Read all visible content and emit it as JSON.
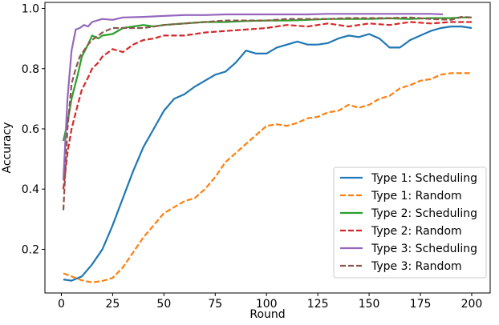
{
  "chart_data": {
    "type": "line",
    "xlabel": "Round",
    "ylabel": "Accuracy",
    "xlim": [
      -8,
      209
    ],
    "ylim": [
      0.055,
      1.02
    ],
    "xticks": [
      0,
      25,
      50,
      75,
      100,
      125,
      150,
      175,
      200
    ],
    "yticks": [
      0.2,
      0.4,
      0.6,
      0.8,
      1.0
    ],
    "ytick_labels": [
      "0.2",
      "0.4",
      "0.6",
      "0.8",
      "1.0"
    ],
    "grid": false,
    "legend_position": "lower-right",
    "series": [
      {
        "name": "Type 1: Scheduling",
        "color": "#1f77b4",
        "dashed": false,
        "x": [
          1,
          5,
          10,
          15,
          20,
          25,
          30,
          35,
          40,
          45,
          50,
          55,
          60,
          65,
          70,
          75,
          80,
          85,
          90,
          95,
          100,
          105,
          110,
          115,
          120,
          125,
          130,
          135,
          140,
          145,
          150,
          155,
          160,
          165,
          170,
          175,
          180,
          185,
          190,
          195,
          200
        ],
        "y": [
          0.1,
          0.096,
          0.11,
          0.15,
          0.2,
          0.28,
          0.37,
          0.46,
          0.54,
          0.6,
          0.66,
          0.7,
          0.715,
          0.74,
          0.76,
          0.78,
          0.79,
          0.82,
          0.86,
          0.85,
          0.85,
          0.87,
          0.88,
          0.89,
          0.88,
          0.88,
          0.885,
          0.9,
          0.91,
          0.905,
          0.915,
          0.9,
          0.87,
          0.87,
          0.895,
          0.91,
          0.925,
          0.935,
          0.94,
          0.94,
          0.935
        ]
      },
      {
        "name": "Type 1: Random",
        "color": "#ff7f0e",
        "dashed": true,
        "x": [
          1,
          5,
          10,
          15,
          20,
          25,
          30,
          35,
          40,
          45,
          50,
          55,
          60,
          65,
          70,
          75,
          80,
          85,
          90,
          95,
          100,
          105,
          110,
          115,
          120,
          125,
          130,
          135,
          140,
          145,
          150,
          155,
          160,
          165,
          170,
          175,
          180,
          185,
          190,
          195,
          200
        ],
        "y": [
          0.12,
          0.11,
          0.097,
          0.09,
          0.095,
          0.105,
          0.14,
          0.19,
          0.24,
          0.28,
          0.32,
          0.34,
          0.36,
          0.37,
          0.4,
          0.44,
          0.49,
          0.52,
          0.55,
          0.58,
          0.61,
          0.615,
          0.61,
          0.62,
          0.635,
          0.64,
          0.655,
          0.66,
          0.68,
          0.67,
          0.68,
          0.7,
          0.71,
          0.735,
          0.745,
          0.76,
          0.765,
          0.78,
          0.785,
          0.785,
          0.785
        ]
      },
      {
        "name": "Type 2: Scheduling",
        "color": "#2ca02c",
        "dashed": false,
        "x": [
          1,
          3,
          5,
          8,
          10,
          13,
          15,
          18,
          20,
          25,
          30,
          35,
          40,
          45,
          50,
          60,
          70,
          80,
          90,
          100,
          110,
          120,
          130,
          140,
          150,
          160,
          170,
          180,
          190,
          195,
          200
        ],
        "y": [
          0.56,
          0.62,
          0.7,
          0.78,
          0.84,
          0.88,
          0.91,
          0.9,
          0.91,
          0.915,
          0.935,
          0.94,
          0.945,
          0.94,
          0.945,
          0.95,
          0.955,
          0.955,
          0.958,
          0.96,
          0.96,
          0.962,
          0.965,
          0.965,
          0.965,
          0.967,
          0.965,
          0.968,
          0.968,
          0.97,
          0.97
        ]
      },
      {
        "name": "Type 2: Random",
        "color": "#d62728",
        "dashed": true,
        "x": [
          1,
          3,
          5,
          8,
          10,
          13,
          15,
          18,
          20,
          25,
          30,
          35,
          40,
          45,
          50,
          60,
          70,
          80,
          90,
          100,
          110,
          120,
          130,
          140,
          150,
          160,
          170,
          180,
          190,
          200
        ],
        "y": [
          0.4,
          0.52,
          0.6,
          0.68,
          0.73,
          0.77,
          0.8,
          0.82,
          0.84,
          0.865,
          0.855,
          0.88,
          0.895,
          0.9,
          0.91,
          0.91,
          0.92,
          0.925,
          0.93,
          0.935,
          0.945,
          0.94,
          0.95,
          0.94,
          0.95,
          0.945,
          0.955,
          0.95,
          0.955,
          0.955
        ]
      },
      {
        "name": "Type 3: Scheduling",
        "color": "#9467bd",
        "dashed": false,
        "x": [
          1,
          3,
          5,
          7,
          9,
          11,
          13,
          15,
          20,
          25,
          30,
          40,
          50,
          60,
          70,
          80,
          90,
          100,
          110,
          120,
          130,
          140,
          150,
          160,
          170,
          180,
          186
        ],
        "y": [
          0.43,
          0.7,
          0.86,
          0.93,
          0.935,
          0.945,
          0.94,
          0.955,
          0.965,
          0.962,
          0.97,
          0.972,
          0.975,
          0.978,
          0.978,
          0.98,
          0.98,
          0.98,
          0.98,
          0.98,
          0.982,
          0.982,
          0.982,
          0.982,
          0.982,
          0.982,
          0.98
        ]
      },
      {
        "name": "Type 3: Random",
        "color": "#8c564b",
        "dashed": true,
        "x": [
          1,
          3,
          5,
          7,
          9,
          11,
          13,
          15,
          20,
          25,
          30,
          40,
          50,
          60,
          70,
          80,
          90,
          100,
          110,
          120,
          130,
          140,
          150,
          160,
          170,
          180,
          190,
          195,
          200
        ],
        "y": [
          0.33,
          0.6,
          0.75,
          0.8,
          0.84,
          0.86,
          0.88,
          0.895,
          0.92,
          0.935,
          0.935,
          0.935,
          0.945,
          0.95,
          0.955,
          0.96,
          0.96,
          0.96,
          0.965,
          0.965,
          0.965,
          0.968,
          0.968,
          0.968,
          0.97,
          0.965,
          0.962,
          0.972,
          0.97
        ]
      }
    ]
  }
}
